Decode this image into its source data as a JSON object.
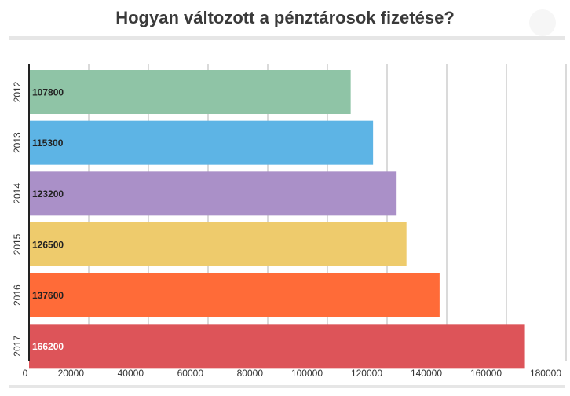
{
  "page": {
    "title": "Hogyan változott a pénztárosok fizetése?"
  },
  "chart_data": {
    "type": "bar",
    "orientation": "horizontal",
    "title": "Hogyan változott a pénztárosok fizetése?",
    "xlabel": "",
    "ylabel": "",
    "categories": [
      "2012",
      "2013",
      "2014",
      "2015",
      "2016",
      "2017"
    ],
    "values": [
      107800,
      115300,
      123200,
      126500,
      137600,
      166200
    ],
    "colors": [
      "#8fc4a6",
      "#5db4e5",
      "#aa90c8",
      "#eecb6c",
      "#ff6b38",
      "#dd5459"
    ],
    "data_labels": [
      "107800",
      "115300",
      "123200",
      "126500",
      "137600",
      "166200"
    ],
    "data_label_colors": [
      "#222222",
      "#222222",
      "#222222",
      "#222222",
      "#222222",
      "#ffffff"
    ],
    "xlim": [
      0,
      180000
    ],
    "xticks": [
      0,
      20000,
      40000,
      60000,
      80000,
      100000,
      120000,
      140000,
      160000,
      180000
    ],
    "xtick_labels": [
      "0",
      "20000",
      "40000",
      "60000",
      "80000",
      "100000",
      "120000",
      "140000",
      "160000",
      "180000"
    ],
    "grid": true,
    "legend": "none"
  }
}
